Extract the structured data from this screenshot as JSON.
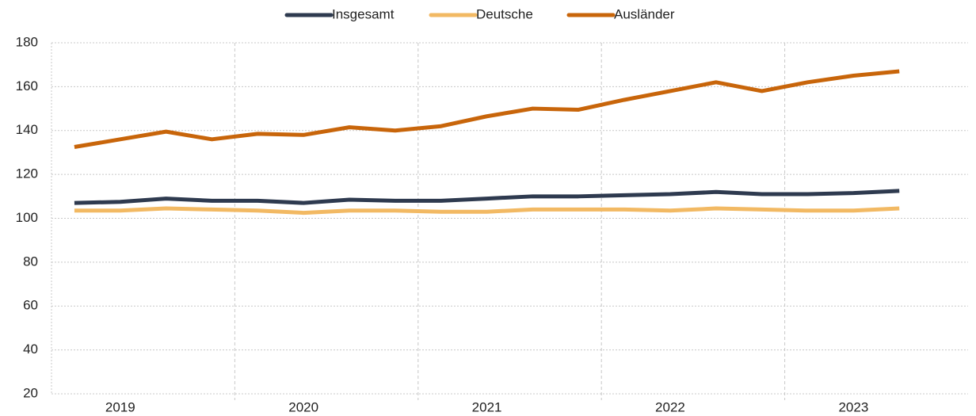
{
  "chart_data": {
    "type": "line",
    "categories": [
      null,
      "2019",
      null,
      null,
      null,
      "2020",
      null,
      null,
      null,
      "2021",
      null,
      null,
      null,
      "2022",
      null,
      null,
      null,
      "2023",
      null,
      null
    ],
    "series": [
      {
        "name": "Insgesamt",
        "color": "#2e3a4f",
        "values": [
          107,
          107.5,
          109,
          108,
          108,
          107,
          108.5,
          108,
          108,
          109,
          110,
          110,
          110.5,
          111,
          112,
          111,
          111,
          111.5,
          112.5,
          null
        ]
      },
      {
        "name": "Deutsche",
        "color": "#f2b963",
        "values": [
          103.5,
          103.5,
          104.5,
          104,
          103.5,
          102.5,
          103.5,
          103.5,
          103,
          103,
          104,
          104,
          104,
          103.5,
          104.5,
          104,
          103.5,
          103.5,
          104.5,
          null
        ]
      },
      {
        "name": "Ausländer",
        "color": "#c8650a",
        "values": [
          132.5,
          136,
          139.5,
          136,
          138.5,
          138,
          141.5,
          140,
          142,
          146.5,
          150,
          149.5,
          154,
          158,
          162,
          158,
          162,
          165,
          167,
          null
        ]
      }
    ],
    "ylim": [
      20,
      180
    ],
    "yticks": [
      20,
      40,
      60,
      80,
      100,
      120,
      140,
      160,
      180
    ],
    "grid": true,
    "legend": "top"
  }
}
